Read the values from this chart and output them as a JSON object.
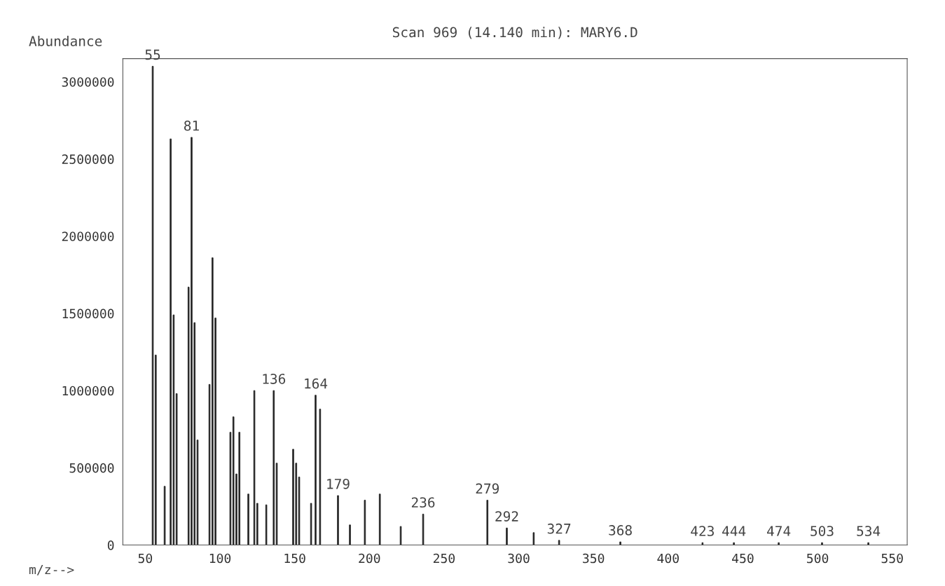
{
  "chart_data": {
    "type": "bar",
    "title": "Scan 969 (14.140 min): MARY6.D",
    "ylabel": "Abundance",
    "xlabel": "m/z-->",
    "color": "#222222",
    "x": [
      55,
      57,
      63,
      67,
      69,
      71,
      79,
      81,
      83,
      85,
      93,
      95,
      97,
      107,
      109,
      111,
      113,
      119,
      123,
      125,
      131,
      136,
      138,
      149,
      151,
      153,
      161,
      164,
      167,
      179,
      187,
      197,
      207,
      221,
      236,
      279,
      292,
      310,
      327,
      368,
      423,
      444,
      474,
      503,
      534
    ],
    "values": [
      3100000,
      1230000,
      380000,
      2630000,
      1490000,
      980000,
      1670000,
      2640000,
      1440000,
      680000,
      1040000,
      1860000,
      1470000,
      730000,
      830000,
      460000,
      730000,
      330000,
      1000000,
      270000,
      260000,
      1000000,
      530000,
      620000,
      530000,
      440000,
      270000,
      970000,
      880000,
      320000,
      130000,
      290000,
      330000,
      120000,
      200000,
      290000,
      110000,
      80000,
      30000,
      20000,
      15000,
      15000,
      15000,
      15000,
      15000
    ],
    "annotations": [
      {
        "text": "55",
        "x": 55,
        "y": 3100000
      },
      {
        "text": "81",
        "x": 81,
        "y": 2640000
      },
      {
        "text": "136",
        "x": 136,
        "y": 1000000
      },
      {
        "text": "164",
        "x": 164,
        "y": 970000
      },
      {
        "text": "179",
        "x": 179,
        "y": 320000
      },
      {
        "text": "236",
        "x": 236,
        "y": 200000
      },
      {
        "text": "279",
        "x": 279,
        "y": 290000
      },
      {
        "text": "292",
        "x": 292,
        "y": 110000
      },
      {
        "text": "327",
        "x": 327,
        "y": 30000
      },
      {
        "text": "368",
        "x": 368,
        "y": 20000
      },
      {
        "text": "423",
        "x": 423,
        "y": 15000
      },
      {
        "text": "444",
        "x": 444,
        "y": 15000
      },
      {
        "text": "474",
        "x": 474,
        "y": 15000
      },
      {
        "text": "503",
        "x": 503,
        "y": 15000
      },
      {
        "text": "534",
        "x": 534,
        "y": 15000
      }
    ],
    "xlim": [
      35,
      560
    ],
    "xticks": [
      50,
      100,
      150,
      200,
      250,
      300,
      350,
      400,
      450,
      500,
      550
    ],
    "ylim": [
      0,
      3150000
    ],
    "yticks": [
      0,
      500000,
      1000000,
      1500000,
      2000000,
      2500000,
      3000000
    ],
    "grid": false,
    "legend": false
  }
}
